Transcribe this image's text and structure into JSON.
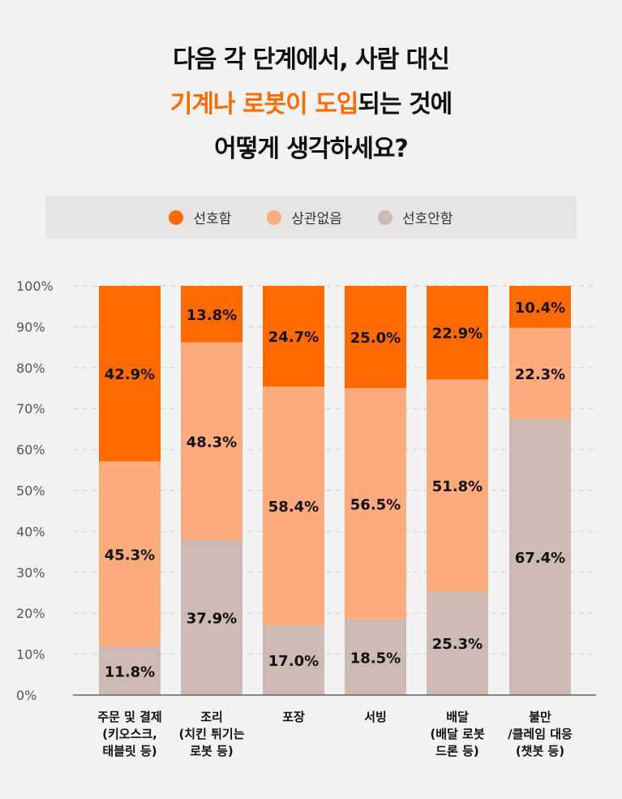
{
  "title": {
    "line1": "다음 각 단계에서, 사람 대신",
    "line2_highlight": "기계나 로봇이 도입",
    "line2_rest": "되는 것에",
    "line3": "어떻게 생각하세요?"
  },
  "colors": {
    "accent": "#ff6a00",
    "prefer": "#ff6a00",
    "neutral": "#fbab7c",
    "not_prefer": "#cdbab2",
    "background": "#f2f2f2"
  },
  "chart_data": {
    "type": "bar",
    "stacked": true,
    "categories": [
      [
        "주문 및 결제",
        "(키오스크,",
        "태블릿 등)"
      ],
      [
        "조리",
        "(치킨 튀기는",
        "로봇 등)"
      ],
      [
        "포장"
      ],
      [
        "서빙"
      ],
      [
        "배달",
        "(배달 로봇",
        "드론 등)"
      ],
      [
        "불만",
        "/클레임 대응",
        "(챗봇 등)"
      ]
    ],
    "series": [
      {
        "name": "선호안함",
        "values": [
          11.8,
          37.9,
          17.0,
          18.5,
          25.3,
          67.4
        ],
        "labels": [
          "11.8%",
          "37.9%",
          "17.0%",
          "18.5%",
          "25.3%",
          "67.4%"
        ]
      },
      {
        "name": "상관없음",
        "values": [
          45.3,
          48.3,
          58.4,
          56.5,
          51.8,
          22.3
        ],
        "labels": [
          "45.3%",
          "48.3%",
          "58.4%",
          "56.5%",
          "51.8%",
          "22.3%"
        ]
      },
      {
        "name": "선호함",
        "values": [
          42.9,
          13.8,
          24.7,
          25.0,
          22.9,
          10.4
        ],
        "labels": [
          "42.9%",
          "13.8%",
          "24.7%",
          "25.0%",
          "22.9%",
          "10.4%"
        ]
      }
    ],
    "legend": [
      "선호함",
      "상관없음",
      "선호안함"
    ],
    "yticks": [
      "0%",
      "10%",
      "20%",
      "30%",
      "40%",
      "50%",
      "60%",
      "70%",
      "80%",
      "90%",
      "100%"
    ],
    "ylim": [
      0,
      100
    ],
    "grid": true,
    "legend_position": "top"
  }
}
